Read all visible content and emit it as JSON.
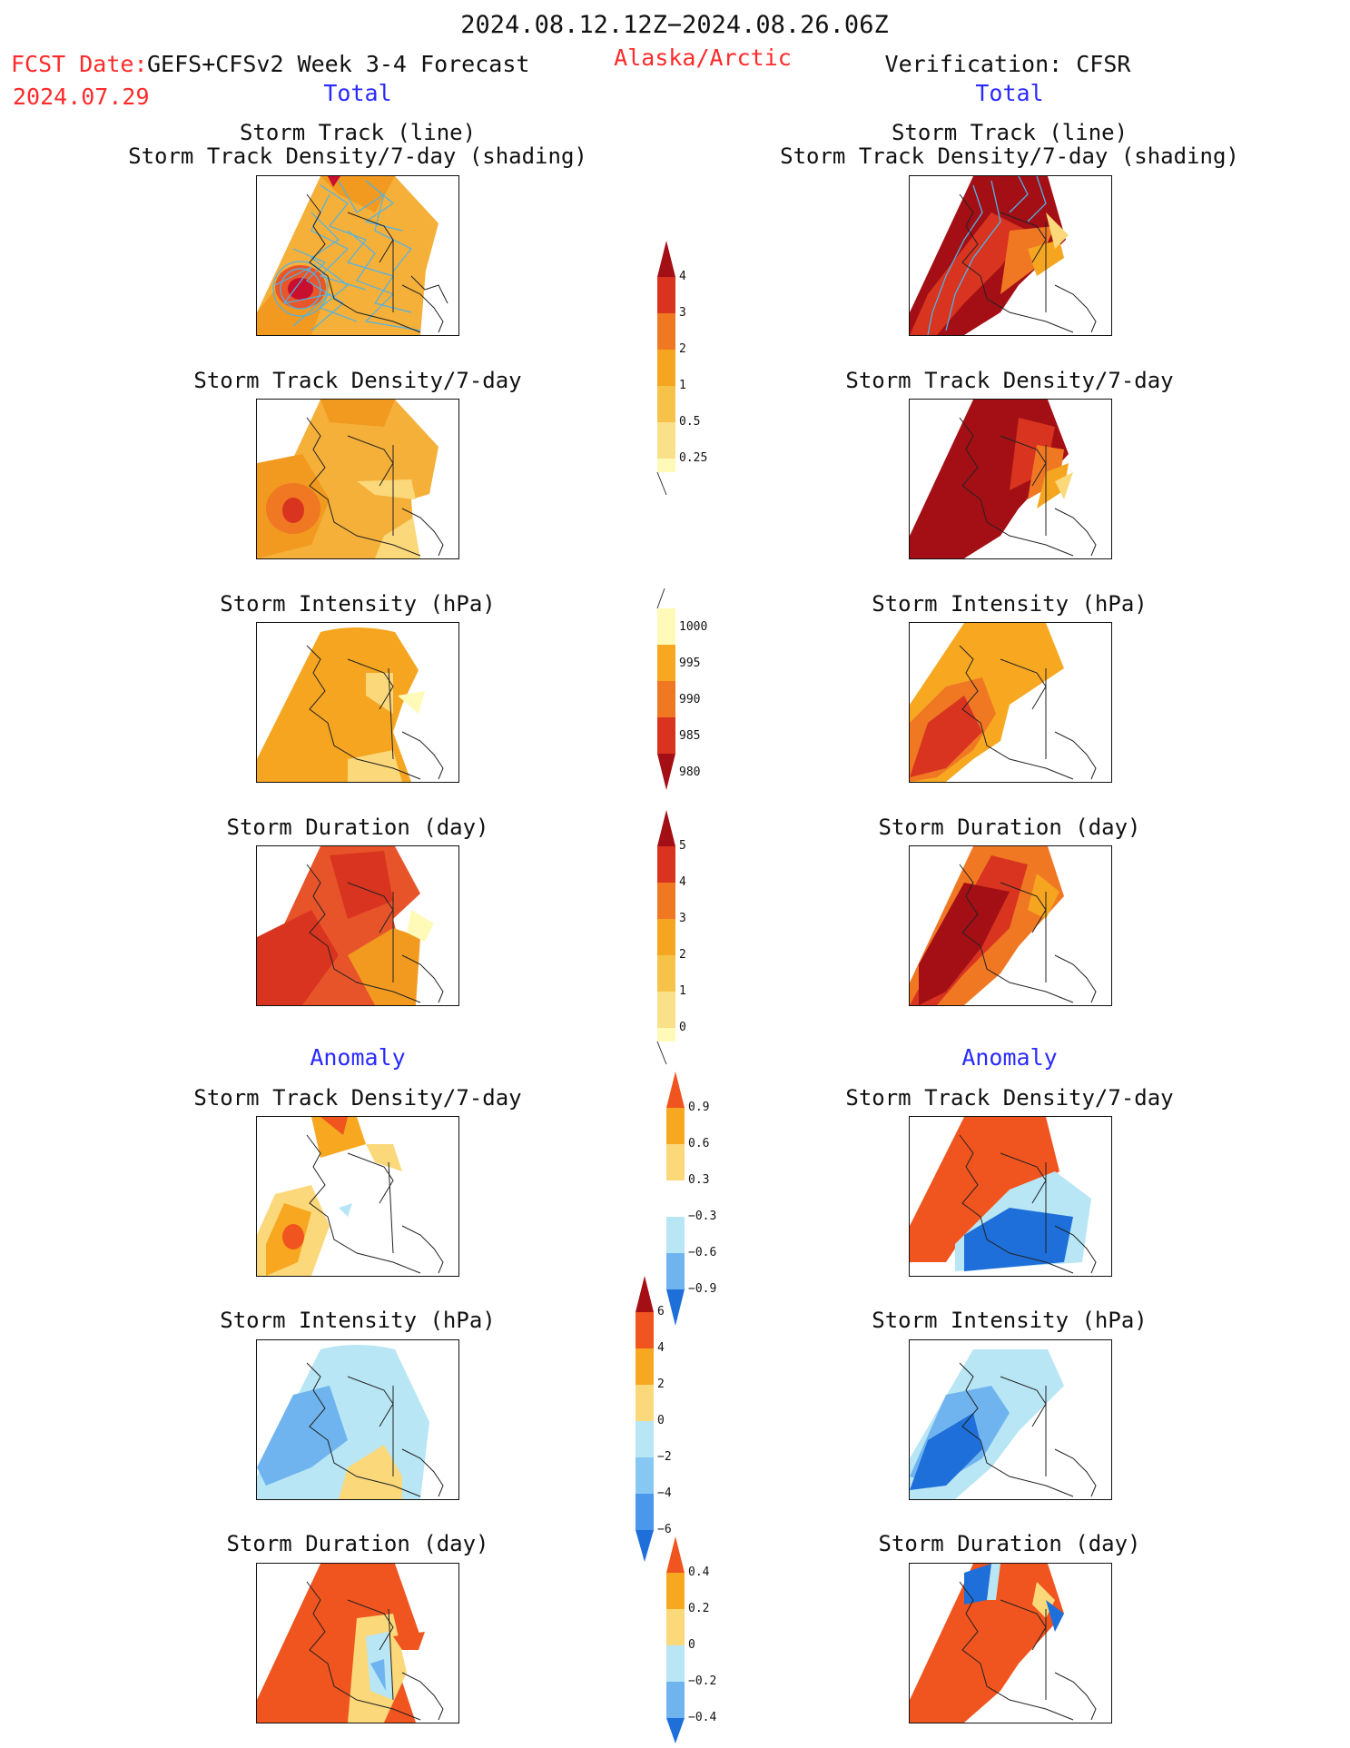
{
  "header": {
    "date_range": "2024.08.12.12Z−2024.08.26.06Z",
    "fcst_label": "FCST Date:",
    "model": "GEFS+CFSv2 Week 3-4 Forecast",
    "fcst_date": "2024.07.29",
    "region": "Alaska/Arctic",
    "verification": "Verification: CFSR"
  },
  "sections": {
    "total": "Total",
    "anomaly": "Anomaly"
  },
  "panel_titles": {
    "track_line": "Storm Track (line)",
    "track_shading": "Storm Track Density/7-day (shading)",
    "density": "Storm Track Density/7-day",
    "intensity": "Storm Intensity (hPa)",
    "duration": "Storm Duration (day)"
  },
  "colorbars": [
    {
      "id": "total-density",
      "labels": [
        "4",
        "3",
        "2",
        "1",
        "0.5",
        "0.25"
      ]
    },
    {
      "id": "total-intensity",
      "labels": [
        "1000",
        "995",
        "990",
        "985",
        "980"
      ]
    },
    {
      "id": "total-duration",
      "labels": [
        "5",
        "4",
        "3",
        "2",
        "1",
        "0"
      ]
    },
    {
      "id": "anom-density",
      "labels": [
        "0.9",
        "0.6",
        "0.3",
        "−0.3",
        "−0.6",
        "−0.9"
      ]
    },
    {
      "id": "anom-intensity",
      "labels": [
        "6",
        "4",
        "2",
        "0",
        "−2",
        "−4",
        "−6"
      ]
    },
    {
      "id": "anom-duration",
      "labels": [
        "0.4",
        "0.2",
        "0",
        "−0.2",
        "−0.4"
      ]
    }
  ],
  "colors": {
    "title_red": "#ff2a2a",
    "title_blue": "#2a2aff",
    "track_line": "#4fb3e8"
  }
}
